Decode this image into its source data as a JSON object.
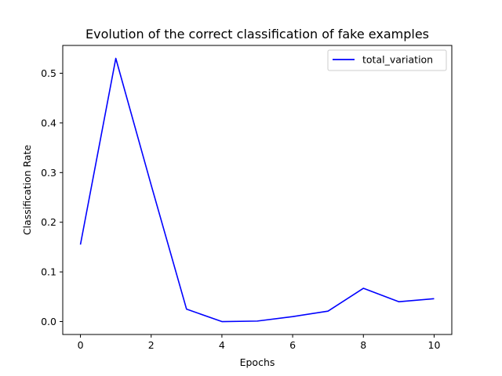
{
  "chart_data": {
    "type": "line",
    "title": "Evolution of the correct classification of fake examples",
    "xlabel": "Epochs",
    "ylabel": "Classification Rate",
    "xlim": [
      -0.5,
      10.5
    ],
    "ylim": [
      -0.026,
      0.556
    ],
    "xticks": [
      0,
      2,
      4,
      6,
      8,
      10
    ],
    "yticks": [
      0.0,
      0.1,
      0.2,
      0.3,
      0.4,
      0.5
    ],
    "grid": false,
    "legend_position": "top-right",
    "series": [
      {
        "name": "total_variation",
        "color": "#0000ff",
        "x": [
          0,
          1,
          2,
          3,
          4,
          5,
          6,
          7,
          8,
          9,
          10
        ],
        "y": [
          0.155,
          0.53,
          0.275,
          0.025,
          0.0,
          0.001,
          0.01,
          0.021,
          0.067,
          0.04,
          0.046
        ]
      }
    ]
  }
}
